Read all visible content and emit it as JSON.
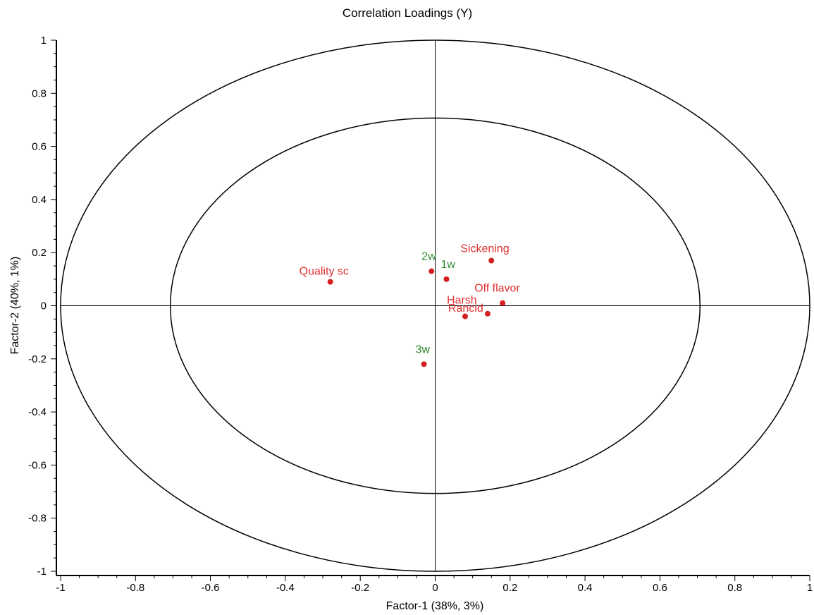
{
  "chart_data": {
    "type": "scatter",
    "title": "Correlation Loadings (Y)",
    "xlabel": "Factor-1 (38%, 3%)",
    "ylabel": "Factor-2 (40%, 1%)",
    "xlim": [
      -1,
      1
    ],
    "ylim": [
      -1,
      1
    ],
    "x_ticks": [
      -1,
      -0.8,
      -0.6,
      -0.4,
      -0.2,
      0,
      0.2,
      0.4,
      0.6,
      0.8,
      1
    ],
    "x_tick_labels": [
      "-1",
      "-0.8",
      "-0.6",
      "-0.4",
      "-0.2",
      "0",
      "0.2",
      "0.4",
      "0.6",
      "0.8",
      "1"
    ],
    "y_ticks": [
      1,
      0.8,
      0.6,
      0.4,
      0.2,
      0,
      -0.2,
      -0.4,
      -0.6,
      -0.8,
      -1
    ],
    "y_tick_labels": [
      "1",
      "0.8",
      "0.6",
      "0.4",
      "0.2",
      "0",
      "-0.2",
      "-0.4",
      "-0.6",
      "-0.8",
      "-1"
    ],
    "circles": [
      1.0,
      0.707
    ],
    "grid": false,
    "colors": {
      "marker": "#d42020",
      "response_label": "#e03030",
      "design_label": "#2e8b2e",
      "frame": "#000000"
    },
    "points": [
      {
        "label": "Quality sc",
        "group": "response",
        "x": -0.28,
        "y": 0.09
      },
      {
        "label": "Sickening",
        "group": "response",
        "x": 0.15,
        "y": 0.17
      },
      {
        "label": "Off flavor",
        "group": "response",
        "x": 0.18,
        "y": 0.01
      },
      {
        "label": "Rancid",
        "group": "response",
        "x": 0.14,
        "y": -0.03
      },
      {
        "label": "Harsh",
        "group": "response",
        "x": 0.08,
        "y": -0.04
      },
      {
        "label": "2w",
        "group": "design",
        "x": -0.01,
        "y": 0.13
      },
      {
        "label": "1w",
        "group": "design",
        "x": 0.03,
        "y": 0.1
      },
      {
        "label": "3w",
        "group": "design",
        "x": -0.03,
        "y": -0.22
      }
    ]
  }
}
